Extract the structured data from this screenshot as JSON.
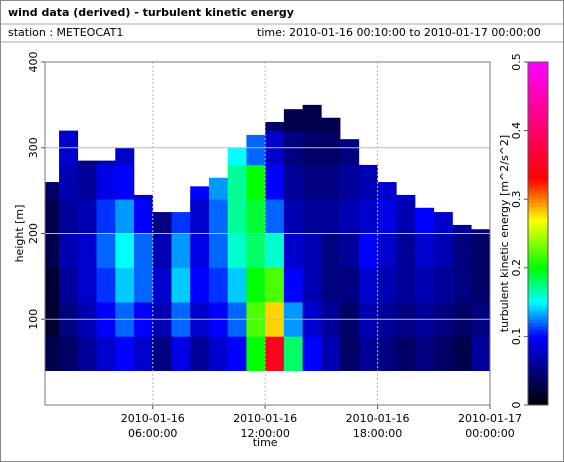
{
  "chart_data": {
    "type": "heatmap",
    "title": "wind data (derived) - turbulent kinetic energy",
    "station": "station : METEOCAT1",
    "time_range": "time: 2010-01-16 00:10:00 to 2010-01-17 00:00:00",
    "xlabel": "time",
    "ylabel": "height [m]",
    "colorbar_label": "turbulent kinetic energy [m^2/s^2]",
    "x": [
      0,
      1,
      2,
      3,
      4,
      5,
      6,
      7,
      8,
      9,
      10,
      11,
      12,
      13,
      14,
      15,
      16,
      17,
      18,
      19,
      20,
      21,
      22,
      23
    ],
    "y": [
      40,
      80,
      120,
      160,
      200,
      240,
      280,
      320
    ],
    "tops": [
      260,
      320,
      285,
      285,
      300,
      245,
      225,
      225,
      255,
      265,
      300,
      315,
      330,
      345,
      350,
      335,
      310,
      280,
      260,
      245,
      230,
      225,
      210,
      205
    ],
    "values": [
      [
        0.03,
        0.02,
        0.02,
        0.03,
        0.03,
        0.04
      ],
      [
        0.04,
        0.05,
        0.06,
        0.07,
        0.06,
        0.07,
        0.08
      ],
      [
        0.06,
        0.07,
        0.08,
        0.08,
        0.07,
        0.06,
        0.05
      ],
      [
        0.08,
        0.1,
        0.11,
        0.12,
        0.11,
        0.09,
        0.07
      ],
      [
        0.1,
        0.12,
        0.14,
        0.15,
        0.13,
        0.1,
        0.08
      ],
      [
        0.08,
        0.1,
        0.12,
        0.12,
        0.1,
        0.08
      ],
      [
        0.05,
        0.07,
        0.08,
        0.07,
        0.05
      ],
      [
        0.09,
        0.12,
        0.14,
        0.13,
        0.11
      ],
      [
        0.06,
        0.08,
        0.1,
        0.09,
        0.08,
        0.1
      ],
      [
        0.08,
        0.1,
        0.11,
        0.12,
        0.12,
        0.13
      ],
      [
        0.1,
        0.12,
        0.14,
        0.16,
        0.17,
        0.17,
        0.15
      ],
      [
        0.2,
        0.22,
        0.2,
        0.18,
        0.19,
        0.2,
        0.12
      ],
      [
        0.35,
        0.28,
        0.22,
        0.16,
        0.12,
        0.1,
        0.08,
        0.04
      ],
      [
        0.18,
        0.13,
        0.1,
        0.08,
        0.07,
        0.06,
        0.05,
        0.03
      ],
      [
        0.1,
        0.08,
        0.07,
        0.07,
        0.06,
        0.05,
        0.04,
        0.03
      ],
      [
        0.07,
        0.06,
        0.05,
        0.05,
        0.06,
        0.05,
        0.04,
        0.03
      ],
      [
        0.04,
        0.04,
        0.05,
        0.06,
        0.07,
        0.06,
        0.05
      ],
      [
        0.06,
        0.07,
        0.08,
        0.1,
        0.08,
        0.07
      ],
      [
        0.05,
        0.06,
        0.07,
        0.08,
        0.09,
        0.08
      ],
      [
        0.04,
        0.05,
        0.06,
        0.06,
        0.07,
        0.08
      ],
      [
        0.05,
        0.06,
        0.07,
        0.08,
        0.1
      ],
      [
        0.04,
        0.05,
        0.06,
        0.07,
        0.08
      ],
      [
        0.03,
        0.04,
        0.05,
        0.05,
        0.06
      ],
      [
        0.06,
        0.05,
        0.04,
        0.04,
        0.05
      ]
    ],
    "xlim": [
      0.25,
      24
    ],
    "xticks": [
      {
        "value": 6,
        "label": "2010-01-16 06:00:00"
      },
      {
        "value": 12,
        "label": "2010-01-16 12:00:00"
      },
      {
        "value": 18,
        "label": "2010-01-16 18:00:00"
      },
      {
        "value": 24,
        "label": "2010-01-17 00:00:00"
      }
    ],
    "ylim": [
      0,
      400
    ],
    "yticks": [
      100,
      200,
      300,
      400
    ],
    "clim": [
      0,
      0.5
    ],
    "cticks": [
      0,
      0.1,
      0.2,
      0.3,
      0.4,
      0.5
    ],
    "grid": true
  }
}
